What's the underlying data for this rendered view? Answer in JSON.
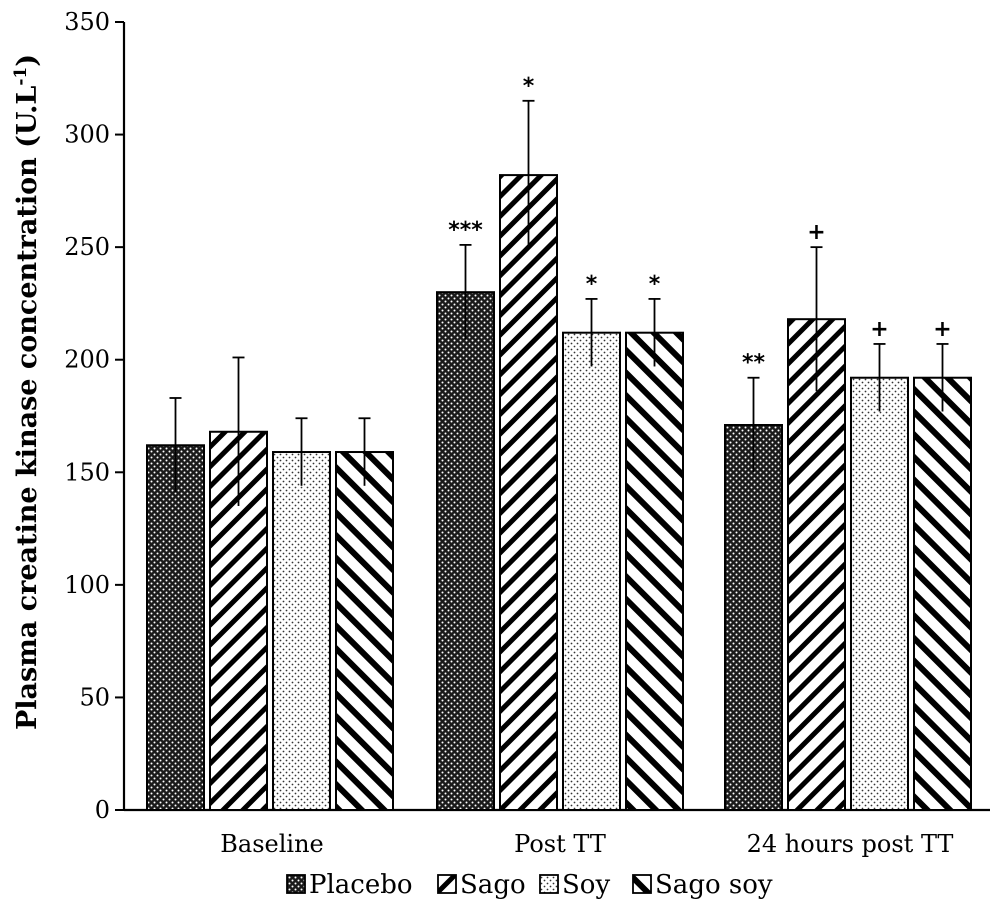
{
  "chart_data": {
    "type": "bar",
    "ylabel": "Plasma creatine kinase concentration (U.L",
    "ylabel_sup": "-1",
    "ylabel_end": ")",
    "ylim": [
      0,
      350
    ],
    "yticks": [
      0,
      50,
      100,
      150,
      200,
      250,
      300,
      350
    ],
    "categories": [
      "Baseline",
      "Post TT",
      "24 hours post TT"
    ],
    "series": [
      {
        "name": "Placebo",
        "pattern": "dots-dark",
        "values": [
          162,
          230,
          171
        ],
        "errors": [
          21,
          21,
          21
        ],
        "annotations": [
          "",
          "***",
          "**"
        ]
      },
      {
        "name": "Sago",
        "pattern": "diag-right",
        "values": [
          168,
          282,
          218
        ],
        "errors": [
          33,
          33,
          32
        ],
        "annotations": [
          "",
          "*",
          "+"
        ]
      },
      {
        "name": "Soy",
        "pattern": "dots-light",
        "values": [
          159,
          212,
          192
        ],
        "errors": [
          15,
          15,
          15
        ],
        "annotations": [
          "",
          "*",
          "+"
        ]
      },
      {
        "name": "Sago soy",
        "pattern": "diag-left",
        "values": [
          159,
          212,
          192
        ],
        "errors": [
          15,
          15,
          15
        ],
        "annotations": [
          "",
          "*",
          "+"
        ]
      }
    ],
    "grid": false,
    "legend_position": "bottom-center"
  }
}
